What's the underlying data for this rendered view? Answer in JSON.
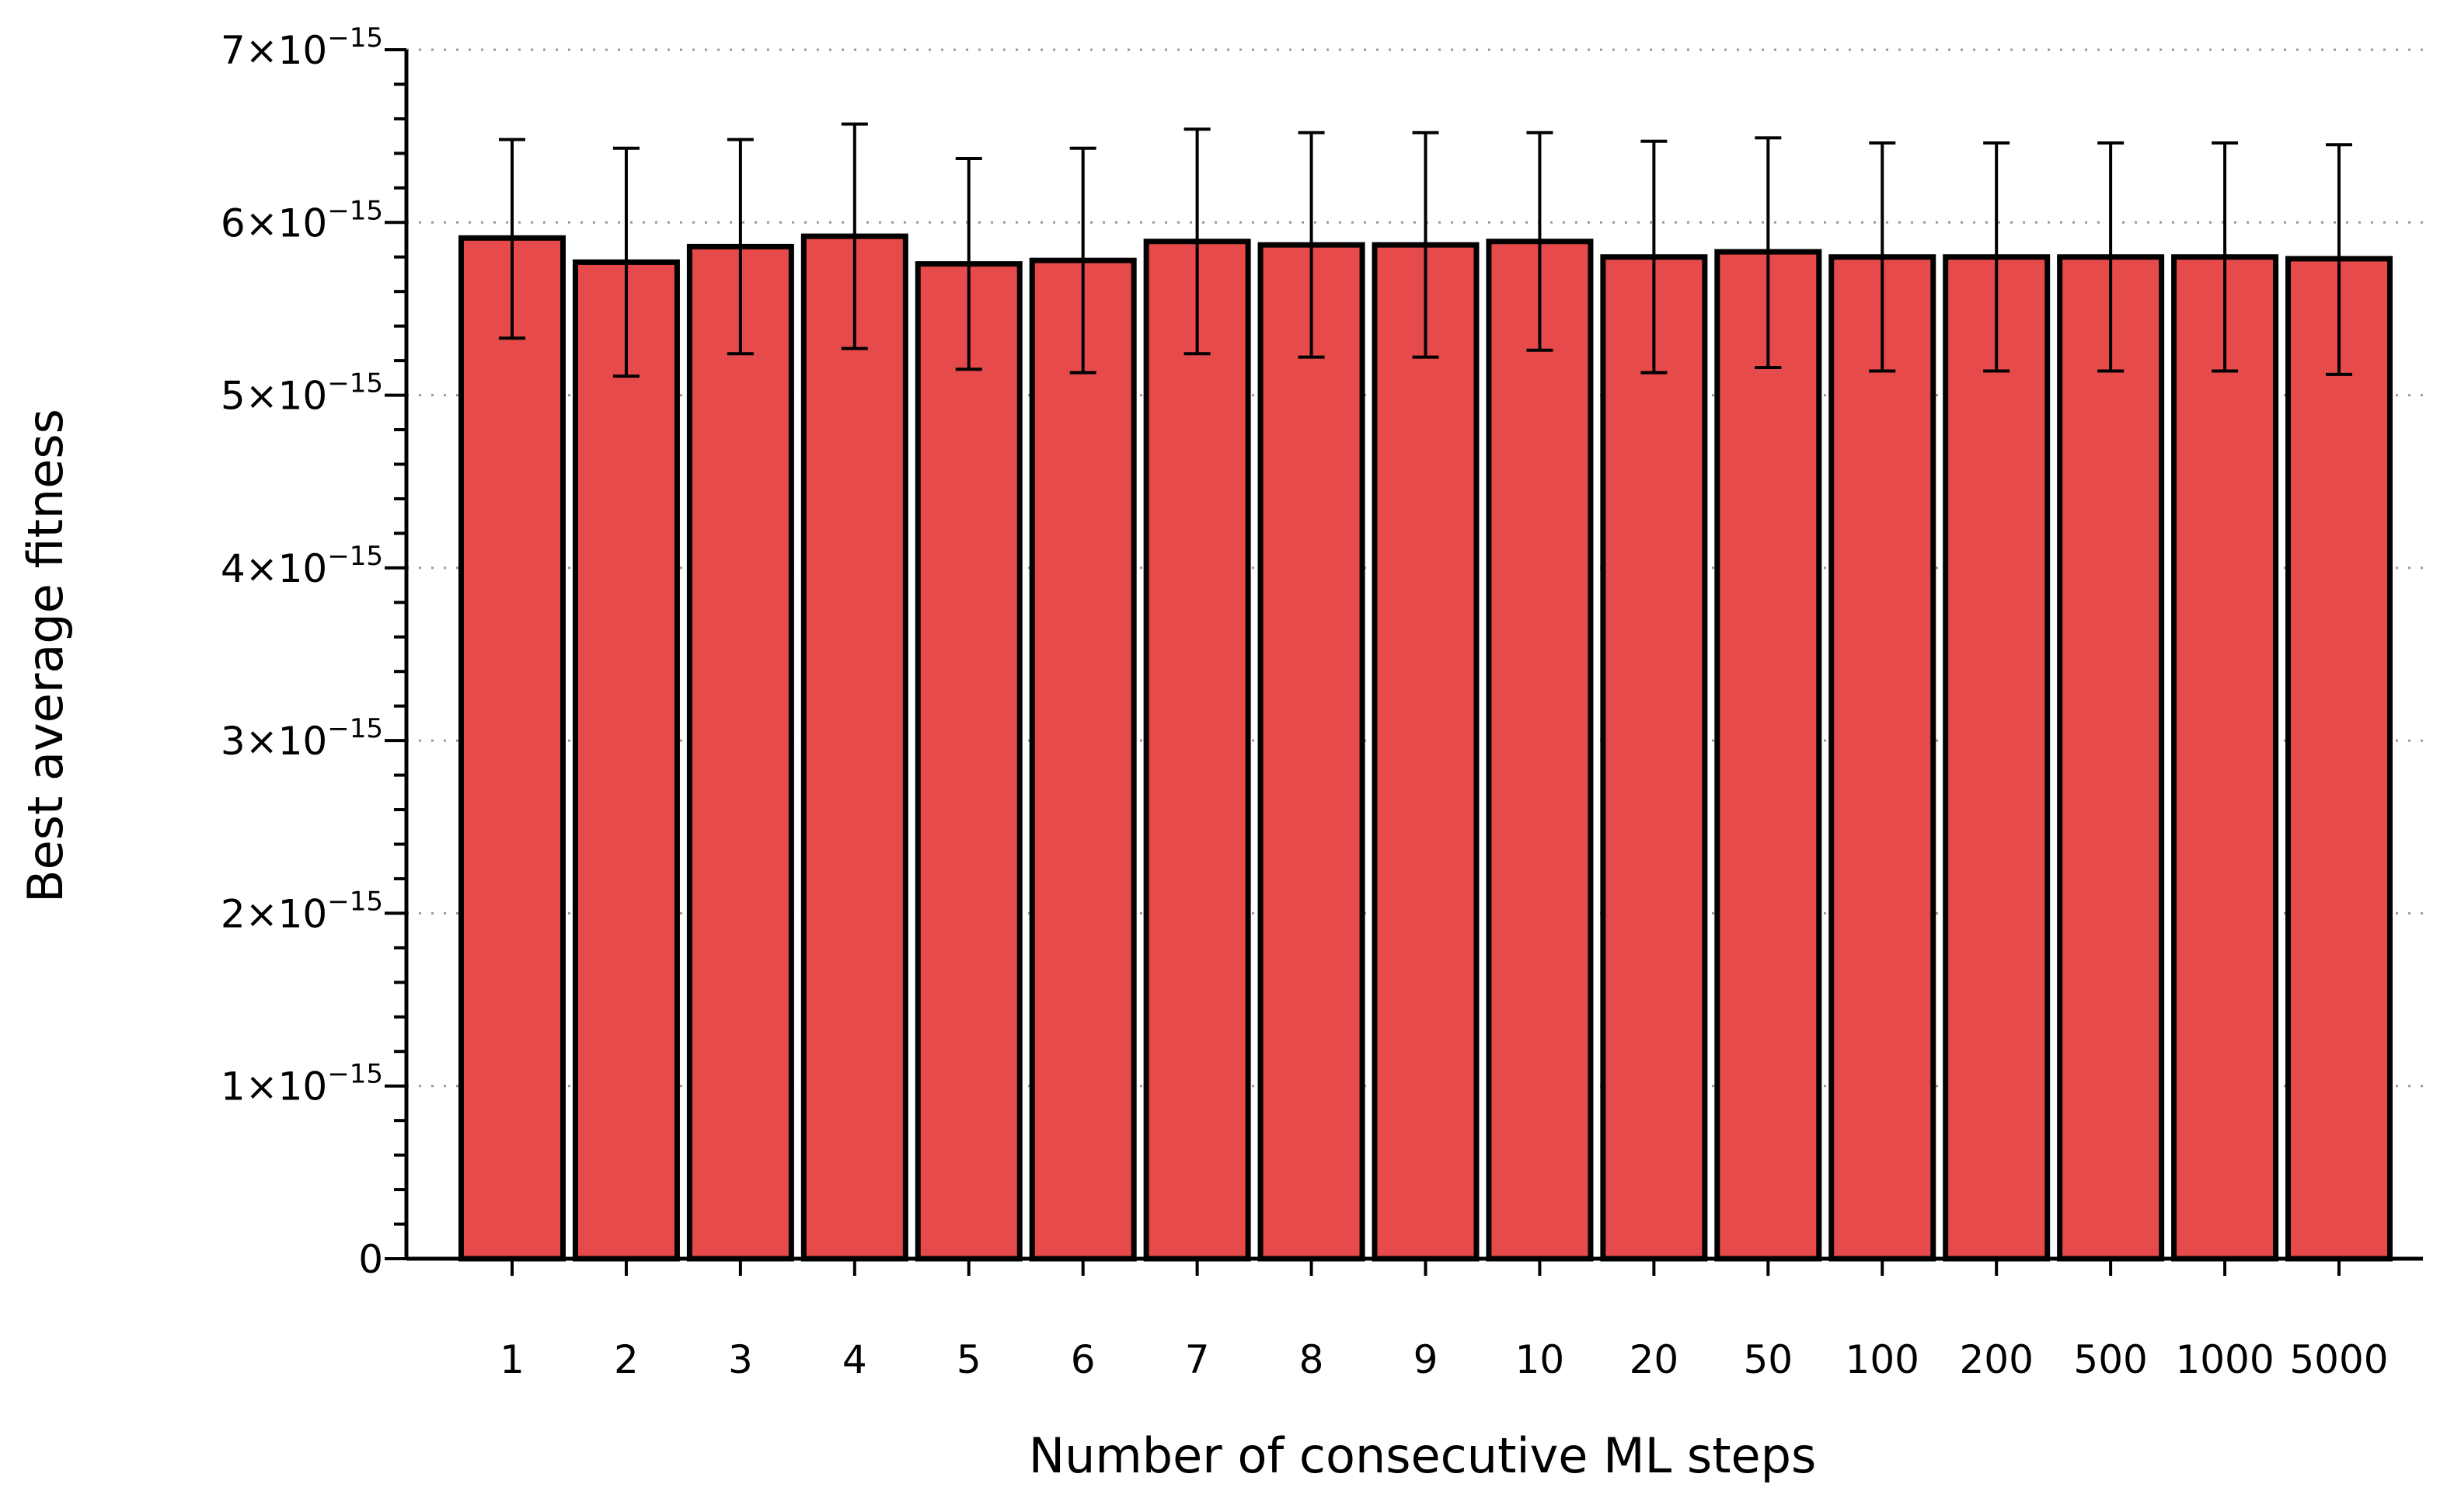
{
  "chart_data": {
    "type": "bar",
    "title": "",
    "xlabel": "Number of consecutive ML steps",
    "ylabel": "Best average fitness",
    "categories": [
      "1",
      "2",
      "3",
      "4",
      "5",
      "6",
      "7",
      "8",
      "9",
      "10",
      "20",
      "50",
      "100",
      "200",
      "500",
      "1000",
      "5000"
    ],
    "values": [
      5.91e-15,
      5.77e-15,
      5.86e-15,
      5.92e-15,
      5.76e-15,
      5.78e-15,
      5.89e-15,
      5.87e-15,
      5.87e-15,
      5.89e-15,
      5.8e-15,
      5.83e-15,
      5.8e-15,
      5.8e-15,
      5.8e-15,
      5.8e-15,
      5.79e-15
    ],
    "error_low": [
      5.33e-15,
      5.11e-15,
      5.24e-15,
      5.27e-15,
      5.15e-15,
      5.13e-15,
      5.24e-15,
      5.22e-15,
      5.22e-15,
      5.26e-15,
      5.13e-15,
      5.16e-15,
      5.14e-15,
      5.14e-15,
      5.14e-15,
      5.14e-15,
      5.12e-15
    ],
    "error_high": [
      6.48e-15,
      6.43e-15,
      6.48e-15,
      6.57e-15,
      6.37e-15,
      6.43e-15,
      6.54e-15,
      6.52e-15,
      6.52e-15,
      6.52e-15,
      6.47e-15,
      6.49e-15,
      6.46e-15,
      6.46e-15,
      6.46e-15,
      6.46e-15,
      6.45e-15
    ],
    "ylim": [
      0,
      7e-15
    ],
    "yticks": [
      {
        "value": 0,
        "mantissa": "0",
        "exponent": ""
      },
      {
        "value": 1e-15,
        "mantissa": "1×10",
        "exponent": "−15"
      },
      {
        "value": 2e-15,
        "mantissa": "2×10",
        "exponent": "−15"
      },
      {
        "value": 3e-15,
        "mantissa": "3×10",
        "exponent": "−15"
      },
      {
        "value": 4e-15,
        "mantissa": "4×10",
        "exponent": "−15"
      },
      {
        "value": 5e-15,
        "mantissa": "5×10",
        "exponent": "−15"
      },
      {
        "value": 6e-15,
        "mantissa": "6×10",
        "exponent": "−15"
      },
      {
        "value": 7e-15,
        "mantissa": "7×10",
        "exponent": "−15"
      }
    ],
    "grid": "horizontal-dotted",
    "colors": {
      "bar_fill": "#e64a4a",
      "bar_edge": "#000000",
      "grid": "#9a9a9a"
    }
  }
}
